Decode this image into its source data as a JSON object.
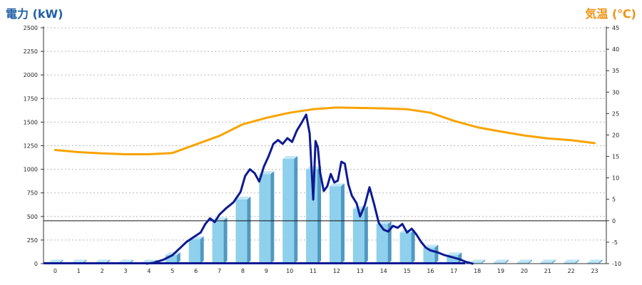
{
  "chart_data": {
    "type": "bar",
    "left_axis_title": "電力 (kW)",
    "right_axis_title": "気温 (℃)",
    "categories": [
      "0",
      "1",
      "2",
      "3",
      "4",
      "5",
      "6",
      "7",
      "8",
      "9",
      "10",
      "11",
      "12",
      "13",
      "14",
      "15",
      "16",
      "17",
      "18",
      "19",
      "20",
      "21",
      "22",
      "23"
    ],
    "y_left_ticks": [
      "0",
      "250",
      "500",
      "750",
      "1000",
      "1250",
      "1500",
      "1750",
      "2000",
      "2250",
      "2500"
    ],
    "y_right_ticks": [
      "-10",
      "-5",
      "0",
      "5",
      "10",
      "15",
      "20",
      "25",
      "30",
      "35",
      "40",
      "45"
    ],
    "ylim_left": [
      0,
      2500
    ],
    "ylim_right": [
      -10,
      45
    ],
    "reference_line_right": 0,
    "grid": true,
    "series": [
      {
        "kind": "bar",
        "axis": "left",
        "values": [
          12,
          12,
          12,
          12,
          12,
          90,
          260,
          460,
          680,
          950,
          1110,
          1000,
          820,
          580,
          420,
          330,
          170,
          90,
          12,
          12,
          12,
          12,
          12,
          12
        ]
      },
      {
        "kind": "line",
        "axis": "left",
        "x": [
          3.9,
          4.2,
          4.6,
          5.0,
          5.3,
          5.6,
          5.9,
          6.2,
          6.4,
          6.6,
          6.8,
          7.0,
          7.3,
          7.6,
          7.9,
          8.1,
          8.3,
          8.5,
          8.7,
          8.9,
          9.1,
          9.3,
          9.5,
          9.7,
          9.9,
          10.1,
          10.3,
          10.5,
          10.7,
          10.85,
          11.0,
          11.1,
          11.2,
          11.3,
          11.45,
          11.6,
          11.75,
          11.9,
          12.05,
          12.2,
          12.35,
          12.5,
          12.65,
          12.85,
          13.0,
          13.2,
          13.4,
          13.6,
          13.8,
          14.0,
          14.2,
          14.4,
          14.6,
          14.8,
          15.0,
          15.2,
          15.4,
          15.6,
          15.8,
          16.0,
          16.3,
          16.6,
          16.9,
          17.2,
          17.5,
          17.8
        ],
        "values": [
          0,
          10,
          40,
          90,
          160,
          230,
          280,
          330,
          420,
          480,
          440,
          520,
          590,
          650,
          760,
          930,
          1000,
          960,
          870,
          1030,
          1140,
          1270,
          1310,
          1270,
          1330,
          1290,
          1410,
          1490,
          1580,
          1380,
          680,
          1300,
          1230,
          960,
          770,
          820,
          950,
          860,
          880,
          1080,
          1060,
          840,
          720,
          640,
          500,
          620,
          810,
          630,
          430,
          360,
          340,
          400,
          380,
          420,
          330,
          370,
          310,
          230,
          170,
          140,
          120,
          90,
          70,
          50,
          20,
          0
        ]
      },
      {
        "kind": "line",
        "axis": "right",
        "x": [
          0,
          1,
          2,
          3,
          4,
          5,
          6,
          7,
          8,
          9,
          10,
          11,
          12,
          13,
          14,
          15,
          16,
          17,
          18,
          19,
          20,
          21,
          22,
          23
        ],
        "values": [
          16.5,
          16.0,
          15.7,
          15.5,
          15.5,
          15.8,
          17.8,
          19.8,
          22.5,
          24.0,
          25.2,
          26.0,
          26.4,
          26.3,
          26.2,
          26.0,
          25.2,
          23.3,
          21.8,
          20.8,
          19.9,
          19.2,
          18.8,
          18.1
        ]
      }
    ],
    "colors": {
      "bar_face": "#8fd0ec",
      "bar_side": "#4f99c3",
      "bar_top": "#c2e6f6",
      "power_line": "#0d1a93",
      "temp_line": "#f8a300",
      "grid": "#b8b8b8",
      "left_title": "#1f5fa8",
      "right_title": "#f0920f"
    }
  }
}
